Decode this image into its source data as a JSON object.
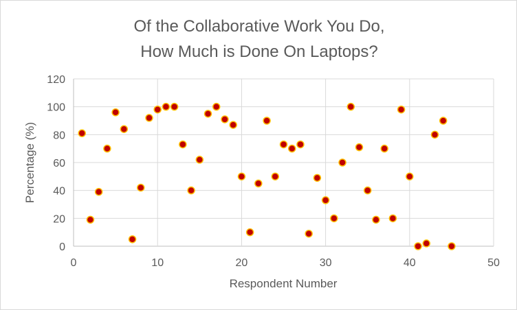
{
  "chart_data": {
    "type": "scatter",
    "title_lines": [
      "Of the Collaborative Work You Do,",
      "How Much is Done On Laptops?"
    ],
    "xlabel": "Respondent Number",
    "ylabel": "Percentage (%)",
    "xlim": [
      0,
      50
    ],
    "ylim": [
      0,
      120
    ],
    "x_ticks": [
      0,
      10,
      20,
      30,
      40,
      50
    ],
    "y_ticks": [
      0,
      20,
      40,
      60,
      80,
      100,
      120
    ],
    "grid": true,
    "legend": "none",
    "marker_fill": "#c00000",
    "marker_edge": "#ffc000",
    "points": [
      {
        "x": 1,
        "y": 81
      },
      {
        "x": 2,
        "y": 19
      },
      {
        "x": 3,
        "y": 39
      },
      {
        "x": 4,
        "y": 70
      },
      {
        "x": 5,
        "y": 96
      },
      {
        "x": 6,
        "y": 84
      },
      {
        "x": 7,
        "y": 5
      },
      {
        "x": 8,
        "y": 42
      },
      {
        "x": 9,
        "y": 92
      },
      {
        "x": 10,
        "y": 98
      },
      {
        "x": 11,
        "y": 100
      },
      {
        "x": 12,
        "y": 100
      },
      {
        "x": 13,
        "y": 73
      },
      {
        "x": 14,
        "y": 40
      },
      {
        "x": 15,
        "y": 62
      },
      {
        "x": 16,
        "y": 95
      },
      {
        "x": 17,
        "y": 100
      },
      {
        "x": 18,
        "y": 91
      },
      {
        "x": 19,
        "y": 87
      },
      {
        "x": 20,
        "y": 50
      },
      {
        "x": 21,
        "y": 10
      },
      {
        "x": 22,
        "y": 45
      },
      {
        "x": 23,
        "y": 90
      },
      {
        "x": 24,
        "y": 50
      },
      {
        "x": 25,
        "y": 73
      },
      {
        "x": 26,
        "y": 70
      },
      {
        "x": 27,
        "y": 73
      },
      {
        "x": 28,
        "y": 9
      },
      {
        "x": 29,
        "y": 49
      },
      {
        "x": 30,
        "y": 33
      },
      {
        "x": 31,
        "y": 20
      },
      {
        "x": 32,
        "y": 60
      },
      {
        "x": 33,
        "y": 100
      },
      {
        "x": 34,
        "y": 71
      },
      {
        "x": 35,
        "y": 40
      },
      {
        "x": 36,
        "y": 19
      },
      {
        "x": 37,
        "y": 70
      },
      {
        "x": 38,
        "y": 20
      },
      {
        "x": 39,
        "y": 98
      },
      {
        "x": 40,
        "y": 50
      },
      {
        "x": 41,
        "y": 0
      },
      {
        "x": 42,
        "y": 2
      },
      {
        "x": 43,
        "y": 80
      },
      {
        "x": 44,
        "y": 90
      },
      {
        "x": 45,
        "y": 0
      }
    ]
  }
}
